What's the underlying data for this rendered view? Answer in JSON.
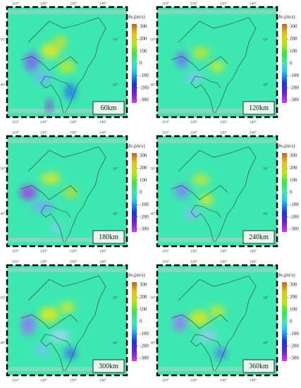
{
  "panels": [
    {
      "label": "60km"
    },
    {
      "label": "120km"
    },
    {
      "label": "180km"
    },
    {
      "label": "240km"
    },
    {
      "label": "300km"
    },
    {
      "label": "360km"
    }
  ],
  "colorbar": {
    "title": {
      "symbol": "δv",
      "subscript": "s",
      "unit": "(m/s)"
    },
    "ticks": [
      "300",
      "200",
      "100",
      "0",
      "-100",
      "-200",
      "-300"
    ]
  },
  "axes": {
    "longitude": [
      "110°",
      "120°",
      "130°",
      "140°"
    ],
    "latitude": [
      "50°",
      "40°"
    ]
  }
}
